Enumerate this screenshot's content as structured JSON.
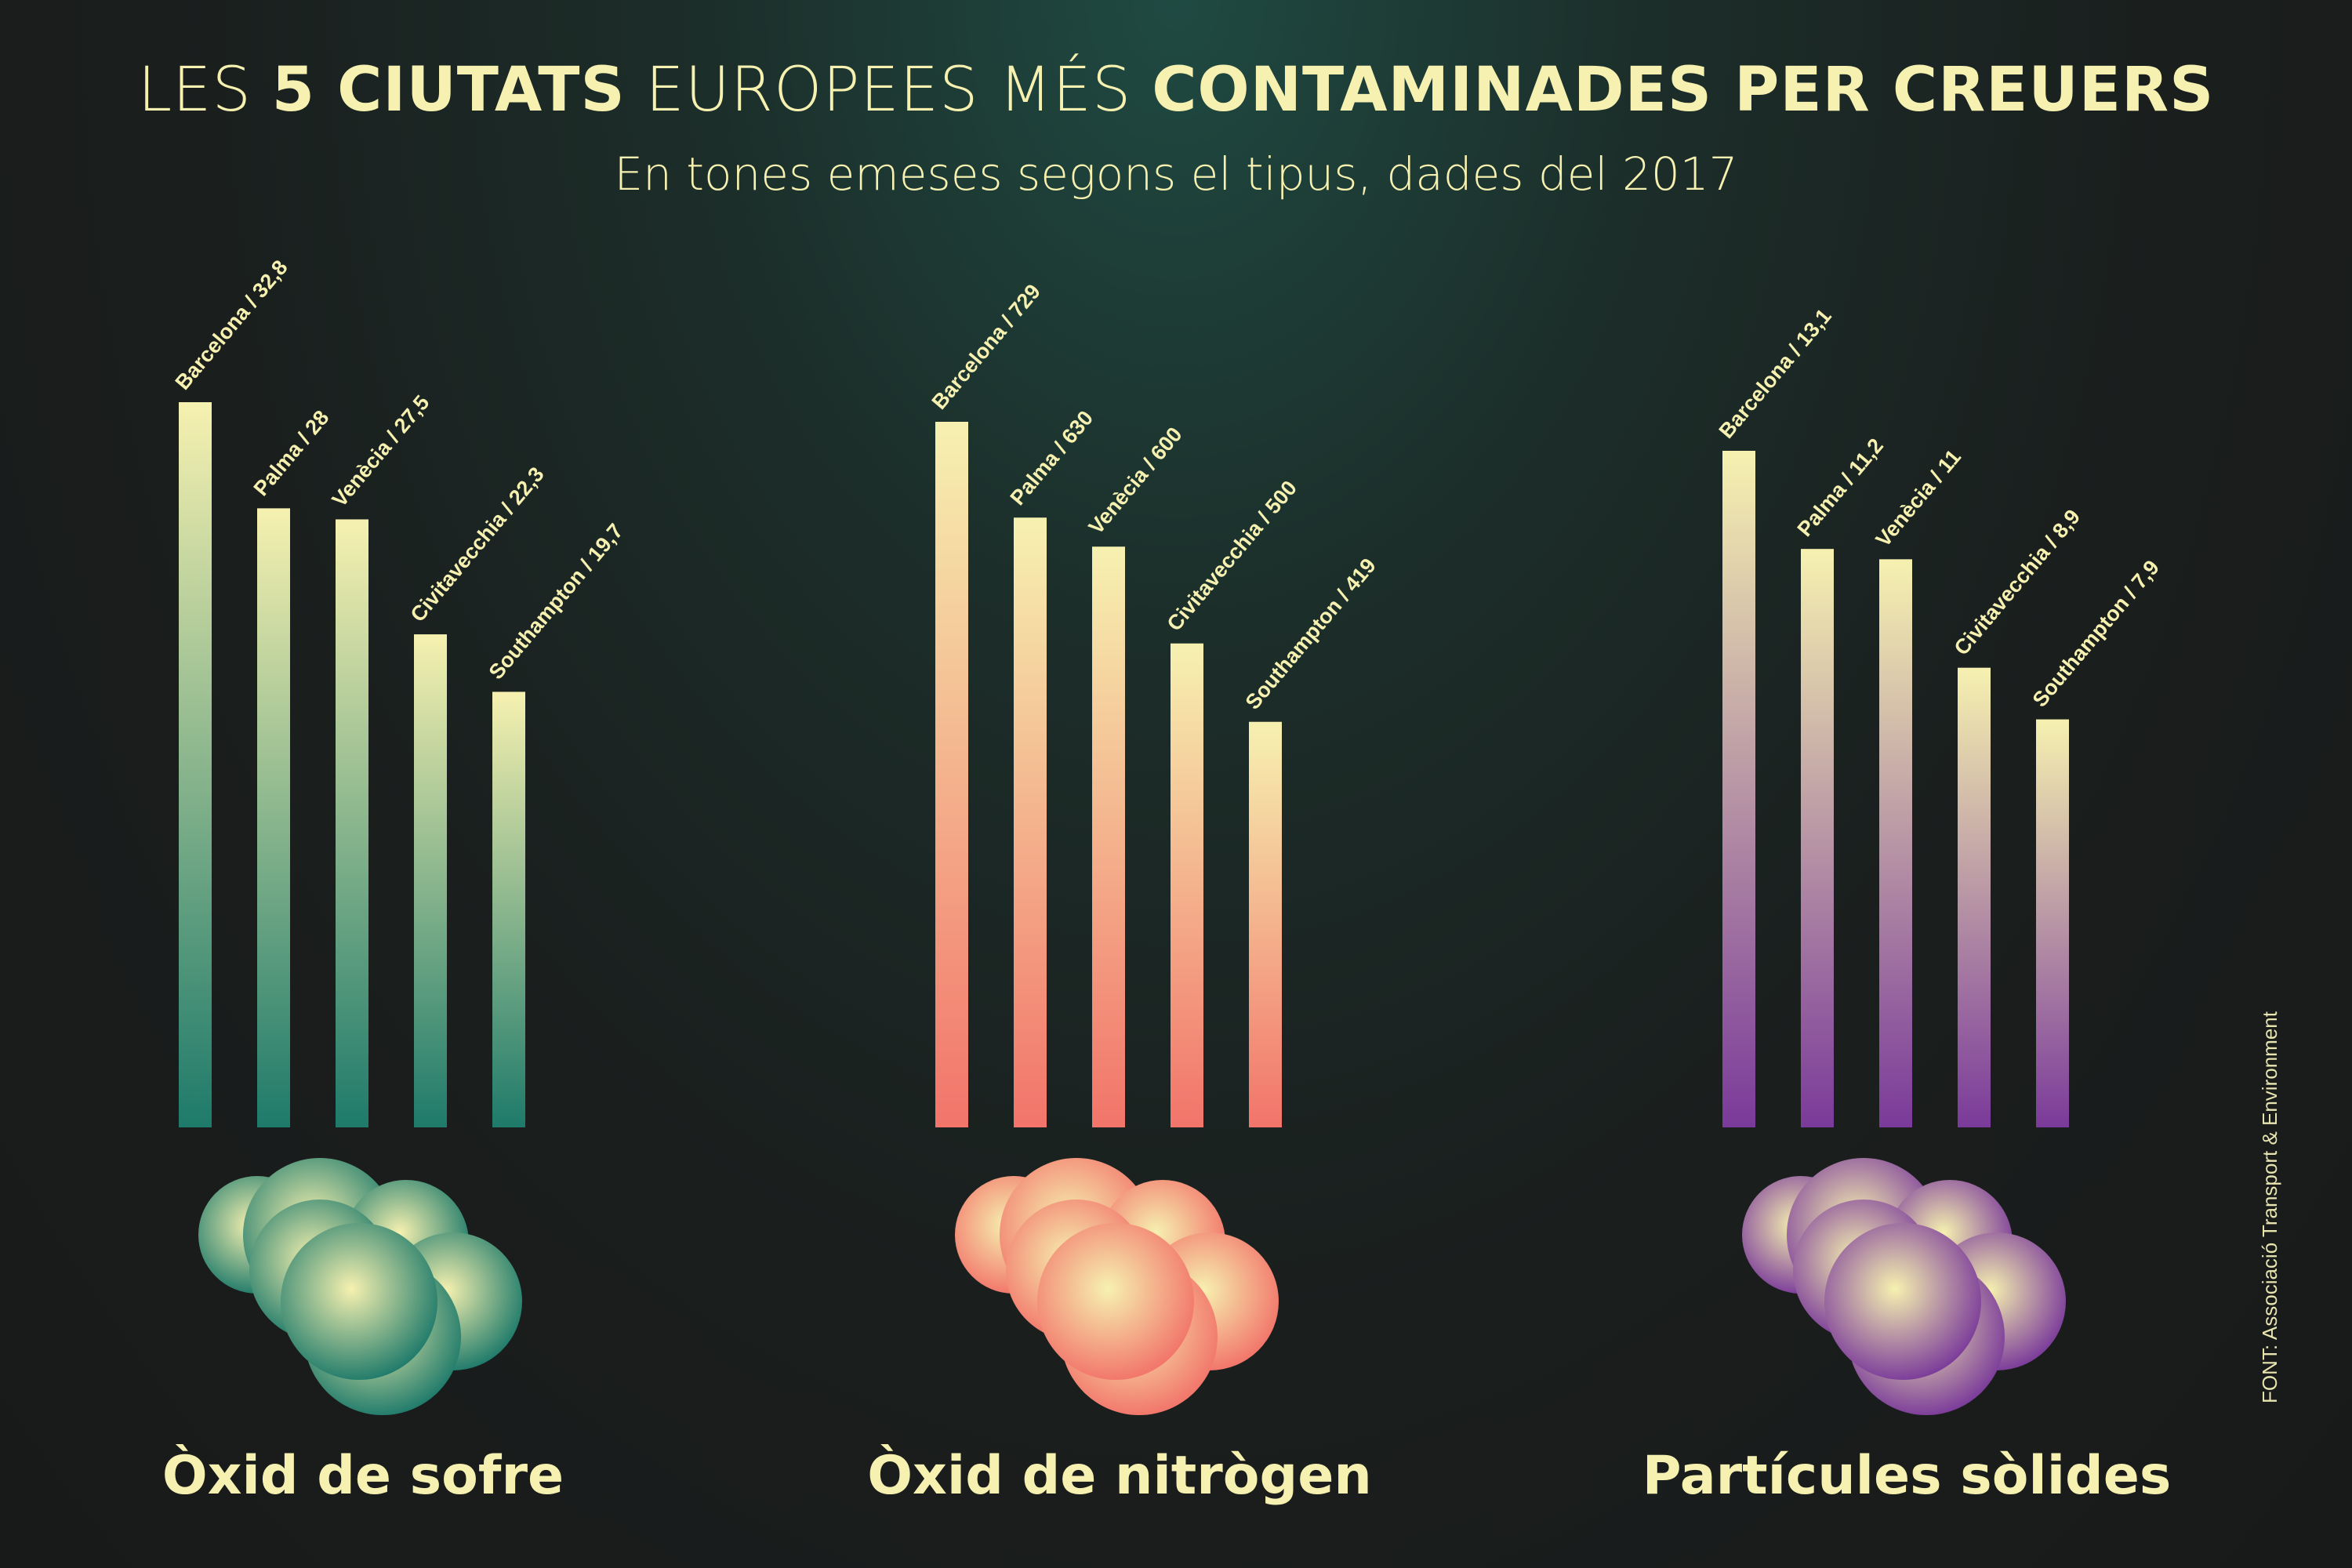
{
  "header": {
    "title_parts": [
      {
        "text": "LES ",
        "bold": false
      },
      {
        "text": "5 CIUTATS",
        "bold": true
      },
      {
        "text": " EUROPEES MÉS ",
        "bold": false
      },
      {
        "text": "CONTAMINADES PER CREUERS",
        "bold": true
      }
    ],
    "subtitle": "En tones emeses segons el tipus, dades del 2017"
  },
  "source": "FONT: Associació Transport & Environment",
  "colors": {
    "text": "#f6f1b0",
    "bar_top": "#f6f1b0",
    "sulfur": "#1e7a6a",
    "nitrogen": "#f2746a",
    "particles": "#7a3a9a"
  },
  "chart_data": [
    {
      "type": "bar",
      "title": "Òxid de sofre",
      "categories": [
        "Barcelona",
        "Palma",
        "Venècia",
        "Civitavecchia",
        "Southampton"
      ],
      "values": [
        32.8,
        28,
        27.5,
        22.3,
        19.7
      ],
      "labels": [
        "Barcelona / 32,8",
        "Palma / 28",
        "Venècia / 27,5",
        "Civitavecchia / 22,3",
        "Southampton / 19,7"
      ],
      "color": "#1e7a6a"
    },
    {
      "type": "bar",
      "title": "Òxid de nitrògen",
      "categories": [
        "Barcelona",
        "Palma",
        "Venècia",
        "Civitavecchia",
        "Southampton"
      ],
      "values": [
        729,
        630,
        600,
        500,
        419
      ],
      "labels": [
        "Barcelona / 729",
        "Palma / 630",
        "Venècia / 600",
        "Civitavecchia / 500",
        "Southampton / 419"
      ],
      "color": "#f2746a"
    },
    {
      "type": "bar",
      "title": "Partícules sòlides",
      "categories": [
        "Barcelona",
        "Palma",
        "Venècia",
        "Civitavecchia",
        "Southampton"
      ],
      "values": [
        13.1,
        11.2,
        11,
        8.9,
        7.9
      ],
      "labels": [
        "Barcelona / 13,1",
        "Palma / 11,2",
        "Venècia / 11",
        "Civitavecchia / 8,9",
        "Southampton / 7,9"
      ],
      "color": "#7a3a9a"
    }
  ]
}
